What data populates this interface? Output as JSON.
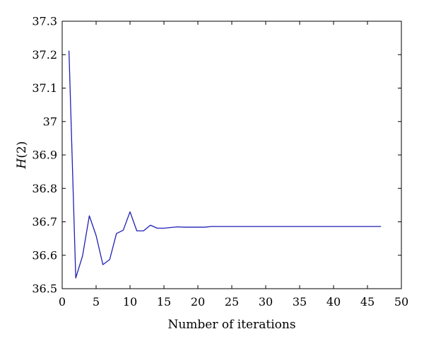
{
  "chart_data": {
    "type": "line",
    "title": "",
    "xlabel": "Number of iterations",
    "ylabel_prefix": "H",
    "ylabel_suffix": "(2)",
    "xlim": [
      0,
      50
    ],
    "ylim": [
      36.5,
      37.3
    ],
    "xticks": [
      "0",
      "5",
      "10",
      "15",
      "20",
      "25",
      "30",
      "35",
      "40",
      "45",
      "50"
    ],
    "yticks": [
      "36.5",
      "36.6",
      "36.7",
      "36.8",
      "36.9",
      "37",
      "37.1",
      "37.2",
      "37.3"
    ],
    "grid": false,
    "legend": "none",
    "series": [
      {
        "color": "#1f1fb4",
        "x": [
          1,
          2,
          3,
          4,
          5,
          6,
          7,
          8,
          9,
          10,
          11,
          12,
          13,
          14,
          15,
          16,
          17,
          18,
          19,
          20,
          21,
          22,
          23,
          24,
          25,
          26,
          27,
          28,
          29,
          30,
          31,
          32,
          33,
          34,
          35,
          36,
          37,
          38,
          39,
          40,
          41,
          42,
          43,
          44,
          45,
          46,
          47
        ],
        "y": [
          37.212,
          36.532,
          36.598,
          36.718,
          36.659,
          36.572,
          36.587,
          36.665,
          36.675,
          36.73,
          36.673,
          36.673,
          36.69,
          36.681,
          36.681,
          36.683,
          36.685,
          36.684,
          36.684,
          36.684,
          36.684,
          36.686,
          36.686,
          36.686,
          36.686,
          36.686,
          36.686,
          36.686,
          36.686,
          36.686,
          36.686,
          36.686,
          36.686,
          36.686,
          36.686,
          36.686,
          36.686,
          36.686,
          36.686,
          36.686,
          36.686,
          36.686,
          36.686,
          36.686,
          36.686,
          36.686,
          36.686
        ]
      }
    ]
  }
}
